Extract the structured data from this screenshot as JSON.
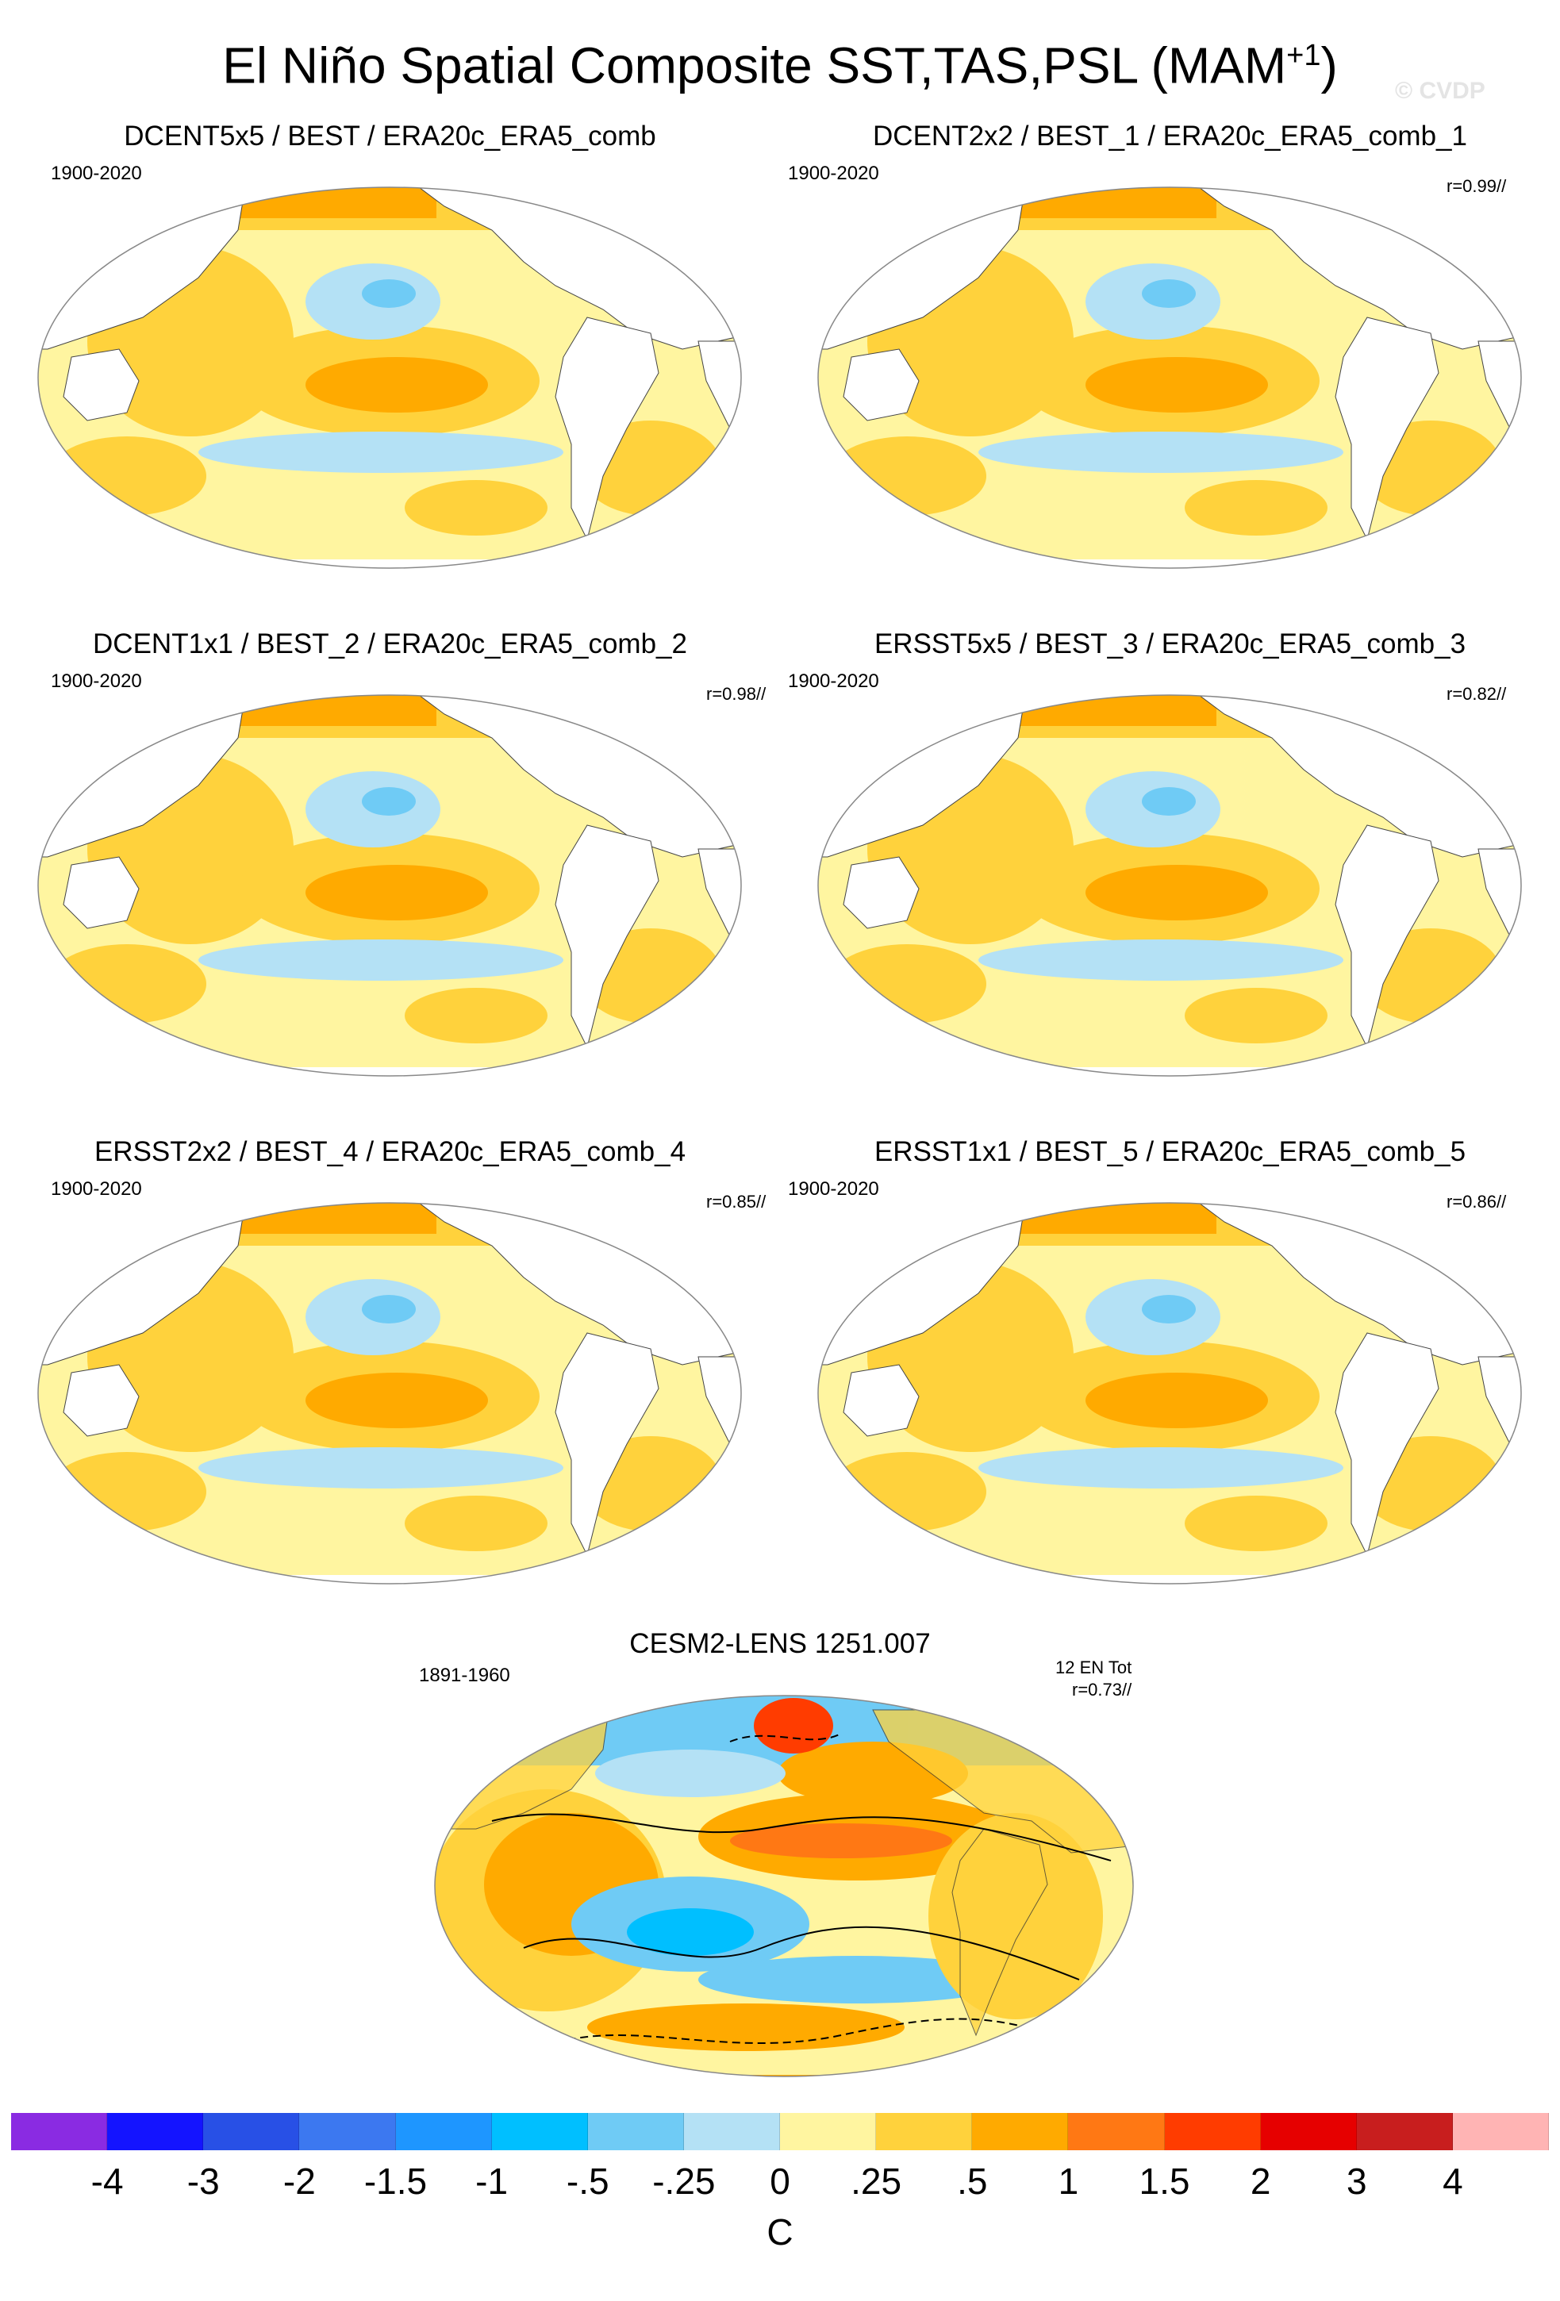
{
  "title_main": "El Niño Spatial Composite SST,TAS,PSL (MAM",
  "title_sup": "+1",
  "title_end": ")",
  "watermark": "© CVDP",
  "colors": {
    "ocean_warm_light": "#fff79a",
    "ocean_warm_mid": "#ffd63a",
    "ocean_warm_strong": "#ffae00",
    "ocean_cool_light": "#aee0f3",
    "ocean_cool_mid": "#5ec8f2",
    "land": "#ffffff"
  },
  "panels": [
    {
      "title": "DCENT5x5 / BEST / ERA20c_ERA5_comb",
      "years": "1900-2020",
      "corr": ""
    },
    {
      "title": "DCENT2x2 / BEST_1 / ERA20c_ERA5_comb_1",
      "years": "1900-2020",
      "corr": "r=0.99//"
    },
    {
      "title": "DCENT1x1 / BEST_2 / ERA20c_ERA5_comb_2",
      "years": "1900-2020",
      "corr": "r=0.98//"
    },
    {
      "title": "ERSST5x5 / BEST_3 / ERA20c_ERA5_comb_3",
      "years": "1900-2020",
      "corr": "r=0.82//"
    },
    {
      "title": "ERSST2x2 / BEST_4 / ERA20c_ERA5_comb_4",
      "years": "1900-2020",
      "corr": "r=0.85//"
    },
    {
      "title": "ERSST1x1 / BEST_5 / ERA20c_ERA5_comb_5",
      "years": "1900-2020",
      "corr": "r=0.86//"
    }
  ],
  "cesm": {
    "title": "CESM2-LENS 1251.007",
    "years": "1891-1960",
    "count": "12 EN Tot",
    "corr": "r=0.73//"
  },
  "colorbar": {
    "colors": [
      "#8a2be2",
      "#1414ff",
      "#2850e6",
      "#3c78f0",
      "#1e96ff",
      "#00bfff",
      "#6fcbf5",
      "#b4e1f5",
      "#fff5a0",
      "#ffd23c",
      "#ffaa00",
      "#ff7814",
      "#ff3c00",
      "#e60000",
      "#c81e1e",
      "#ffb4b4"
    ],
    "labels": [
      "-4",
      "-3",
      "-2",
      "-1.5",
      "-1",
      "-.5",
      "-.25",
      "0",
      ".25",
      ".5",
      "1",
      "1.5",
      "2",
      "3",
      "4"
    ],
    "unit": "C"
  }
}
